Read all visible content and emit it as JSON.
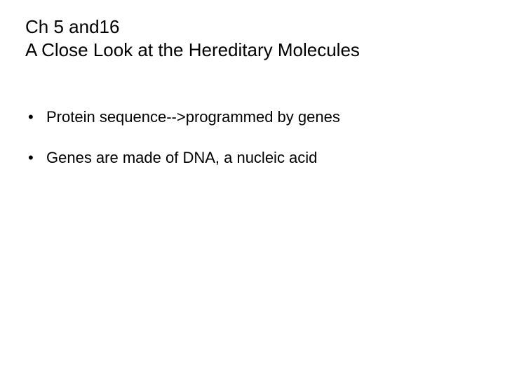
{
  "slide": {
    "background_color": "#ffffff",
    "text_color": "#000000",
    "title": {
      "lines": [
        "Ch 5 and16",
        "A Close Look at the Hereditary Molecules"
      ],
      "font_size": 26,
      "font_weight": "normal"
    },
    "bullets": {
      "font_size": 22,
      "marker": "•",
      "items": [
        "Protein sequence-->programmed by genes",
        "Genes are made of DNA, a nucleic acid"
      ]
    }
  }
}
